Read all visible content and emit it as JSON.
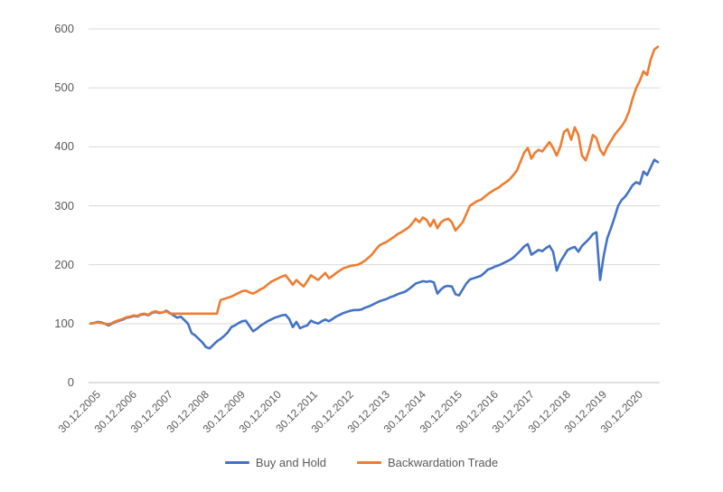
{
  "chart_data": {
    "type": "line",
    "title": "",
    "xlabel": "",
    "ylabel": "",
    "grid": "horizontal",
    "legend_position": "bottom-center",
    "ylim": [
      0,
      600
    ],
    "y_axis": {
      "ticks": [
        0,
        100,
        200,
        300,
        400,
        500,
        600
      ]
    },
    "x_axis": {
      "tick_labels": [
        "30.12.2005",
        "30.12.2006",
        "30.12.2007",
        "30.12.2008",
        "30.12.2009",
        "30.12.2010",
        "30.12.2011",
        "30.12.2012",
        "30.12.2013",
        "30.12.2014",
        "30.12.2015",
        "30.12.2016",
        "30.12.2017",
        "30.12.2018",
        "30.12.2019",
        "30.12.2020"
      ],
      "label_rotation_deg": 45
    },
    "series": [
      {
        "name": "Buy and Hold",
        "color": "#4472c4",
        "t_start": 2006.0,
        "t_step": 0.1,
        "values": [
          100,
          101,
          103,
          102,
          100,
          97,
          100,
          103,
          105,
          107,
          110,
          111,
          113,
          112,
          115,
          116,
          114,
          118,
          120,
          118,
          119,
          122,
          118,
          114,
          110,
          112,
          106,
          100,
          84,
          80,
          74,
          68,
          60,
          58,
          64,
          70,
          74,
          79,
          85,
          94,
          97,
          101,
          104,
          105,
          96,
          87,
          91,
          96,
          100,
          104,
          107,
          110,
          112,
          114,
          115,
          108,
          94,
          103,
          92,
          95,
          97,
          105,
          102,
          100,
          104,
          107,
          104,
          108,
          112,
          115,
          118,
          120,
          122,
          123,
          123,
          124,
          127,
          129,
          132,
          135,
          138,
          140,
          142,
          145,
          147,
          150,
          152,
          154,
          158,
          163,
          168,
          170,
          172,
          171,
          172,
          170,
          151,
          158,
          163,
          164,
          163,
          150,
          148,
          158,
          168,
          175,
          177,
          179,
          181,
          186,
          192,
          194,
          197,
          199,
          202,
          205,
          208,
          212,
          218,
          224,
          231,
          235,
          217,
          221,
          225,
          223,
          228,
          232,
          222,
          190,
          205,
          215,
          225,
          228,
          230,
          222,
          232,
          238,
          244,
          252,
          255,
          174,
          215,
          245,
          262,
          280,
          300,
          310,
          316,
          325,
          335,
          340,
          337,
          358,
          352,
          365,
          378,
          374
        ]
      },
      {
        "name": "Backwardation Trade",
        "color": "#ed7d31",
        "t_start": 2006.0,
        "t_step": 0.1,
        "values": [
          100,
          101,
          102,
          101,
          100,
          99,
          101,
          104,
          106,
          108,
          111,
          112,
          114,
          113,
          116,
          117,
          115,
          119,
          121,
          119,
          119,
          121,
          117,
          117,
          117,
          117,
          117,
          117,
          117,
          117,
          117,
          117,
          117,
          117,
          117,
          117,
          140,
          142,
          144,
          146,
          149,
          152,
          155,
          156,
          153,
          151,
          154,
          158,
          161,
          166,
          171,
          174,
          177,
          180,
          182,
          174,
          166,
          174,
          168,
          163,
          172,
          182,
          178,
          174,
          180,
          186,
          177,
          181,
          186,
          190,
          194,
          196,
          198,
          199,
          200,
          203,
          207,
          212,
          218,
          226,
          233,
          236,
          239,
          243,
          247,
          252,
          255,
          259,
          263,
          270,
          278,
          272,
          280,
          276,
          265,
          276,
          262,
          272,
          276,
          278,
          272,
          258,
          265,
          272,
          286,
          300,
          304,
          308,
          310,
          315,
          320,
          324,
          328,
          331,
          336,
          340,
          345,
          352,
          360,
          375,
          390,
          398,
          380,
          390,
          395,
          392,
          400,
          408,
          398,
          385,
          400,
          425,
          430,
          412,
          433,
          420,
          385,
          377,
          395,
          420,
          415,
          395,
          386,
          400,
          410,
          420,
          428,
          435,
          445,
          460,
          482,
          500,
          512,
          528,
          522,
          548,
          565,
          570
        ]
      }
    ]
  },
  "legend": {
    "items": [
      {
        "label": "Buy and Hold",
        "color": "#4472c4"
      },
      {
        "label": "Backwardation Trade",
        "color": "#ed7d31"
      }
    ]
  }
}
